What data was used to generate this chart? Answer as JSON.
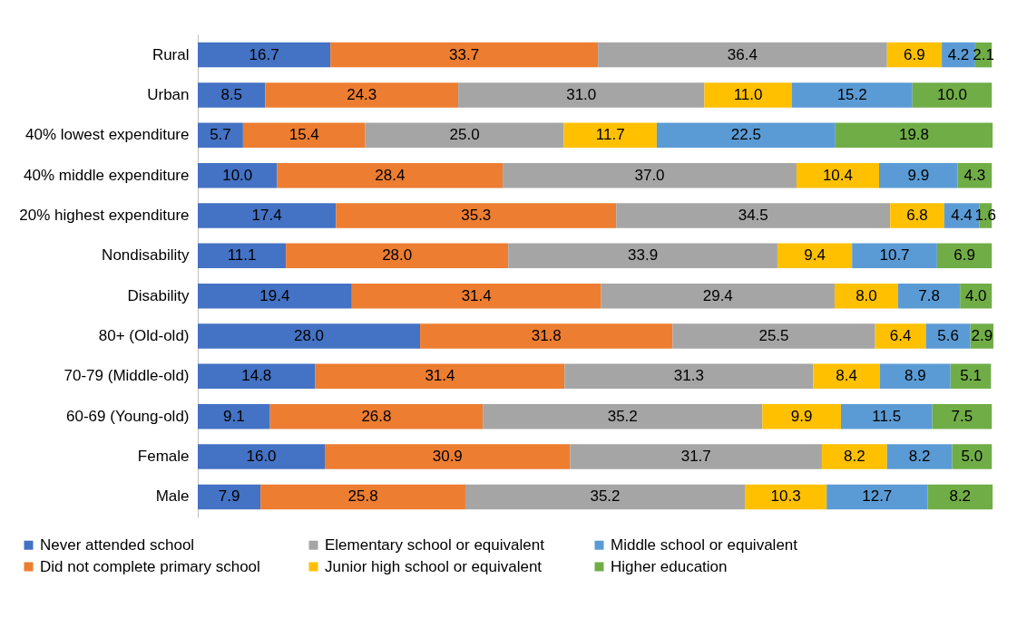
{
  "chart_data": {
    "type": "bar",
    "orientation": "horizontal",
    "stacked": true,
    "legend": "bottom",
    "categories": [
      "Rural",
      "Urban",
      "40% lowest expenditure",
      "40% middle expenditure",
      "20% highest expenditure",
      "Nondisability",
      "Disability",
      "80+ (Old-old)",
      "70-79 (Middle-old)",
      "60-69 (Young-old)",
      "Female",
      "Male"
    ],
    "series": [
      {
        "name": "Never attended school",
        "color": "#4472c4",
        "values": [
          16.7,
          8.5,
          5.7,
          10.0,
          17.4,
          11.1,
          19.4,
          28.0,
          14.8,
          9.1,
          16.0,
          7.9
        ],
        "value_labels": [
          "16.7",
          "8.5",
          "5.7",
          "10.0",
          "17.4",
          "11.1",
          "19.4",
          "28.0",
          "14.8",
          "9.1",
          "16.0",
          "7.9"
        ]
      },
      {
        "name": "Did not complete primary school",
        "color": "#ed7d31",
        "values": [
          33.7,
          24.3,
          15.4,
          28.4,
          35.3,
          28.0,
          31.4,
          31.8,
          31.4,
          26.8,
          30.9,
          25.8
        ],
        "value_labels": [
          "33.7",
          "24.3",
          "15.4",
          "28.4",
          "35.3",
          "28.0",
          "31.4",
          "31.8",
          "31.4",
          "26.8",
          "30.9",
          "25.8"
        ]
      },
      {
        "name": "Elementary school or equivalent",
        "color": "#a5a5a5",
        "values": [
          36.4,
          31.0,
          25.0,
          37.0,
          34.5,
          33.9,
          29.4,
          25.5,
          31.3,
          35.2,
          31.7,
          35.2
        ],
        "value_labels": [
          "36.4",
          "31.0",
          "25.0",
          "37.0",
          "34.5",
          "33.9",
          "29.4",
          "25.5",
          "31.3",
          "35.2",
          "31.7",
          "35.2"
        ]
      },
      {
        "name": "Junior high school  or equivalent",
        "color": "#ffc000",
        "values": [
          6.9,
          11.0,
          11.7,
          10.4,
          6.8,
          9.4,
          8.0,
          6.4,
          8.4,
          9.9,
          8.2,
          10.3
        ],
        "value_labels": [
          "6.9",
          "11.0",
          "11.7",
          "10.4",
          "6.8",
          "9.4",
          "8.0",
          "6.4",
          "8.4",
          "9.9",
          "8.2",
          "10.3"
        ]
      },
      {
        "name": "Middle school or equivalent",
        "color": "#5b9bd5",
        "values": [
          4.2,
          15.2,
          22.5,
          9.9,
          4.4,
          10.7,
          7.8,
          5.6,
          8.9,
          11.5,
          8.2,
          12.7
        ],
        "value_labels": [
          "4.2",
          "15.2",
          "22.5",
          "9.9",
          "4.4",
          "10.7",
          "7.8",
          "5.6",
          "8.9",
          "11.5",
          "8.2",
          "12.7"
        ]
      },
      {
        "name": "Higher education",
        "color": "#70ad47",
        "values": [
          2.1,
          10.0,
          19.8,
          4.3,
          1.6,
          6.9,
          4.0,
          2.9,
          5.1,
          7.5,
          5.0,
          8.2
        ],
        "value_labels": [
          "2.1",
          "10.0",
          "19.8",
          "4.3",
          "1.6",
          "6.9",
          "4.0",
          "2.9",
          "5.1",
          "7.5",
          "5.0",
          "8.2"
        ]
      }
    ]
  }
}
